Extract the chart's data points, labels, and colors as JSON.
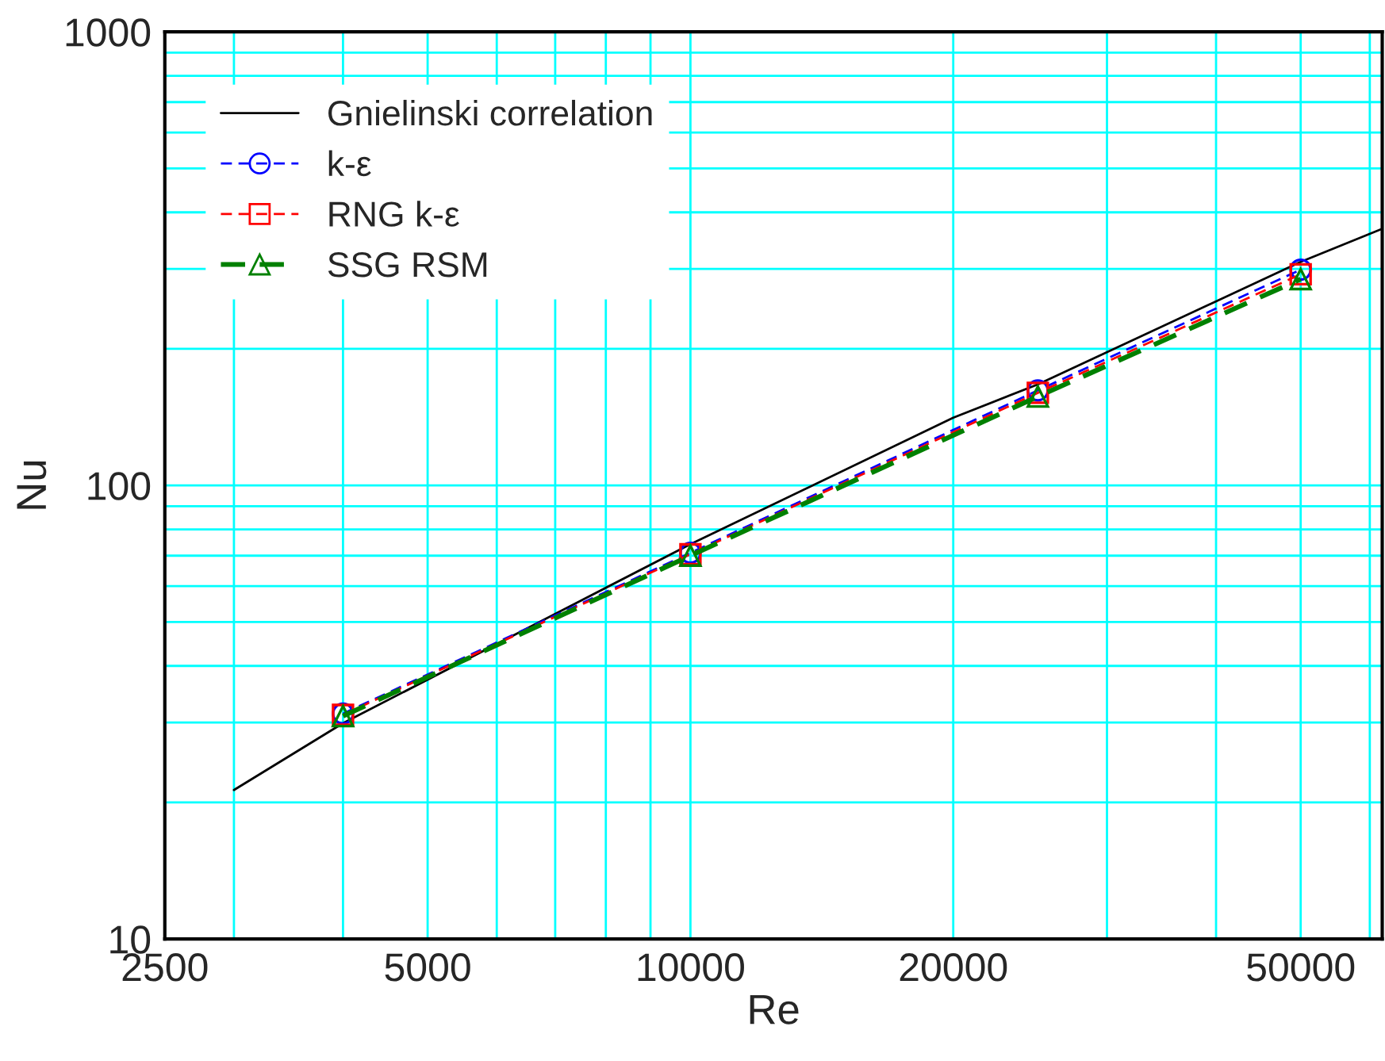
{
  "chart_data": {
    "type": "line",
    "xlabel": "Re",
    "ylabel": "Nu",
    "log": "xy",
    "grid": true,
    "legend": "top left",
    "xlim": [
      2500,
      62000
    ],
    "ylim": [
      10,
      1000
    ],
    "xticks": [
      2500,
      {
        "value": 3000,
        "label": null
      },
      {
        "value": 4000,
        "label": null
      },
      5000,
      {
        "value": 6000,
        "label": null
      },
      {
        "value": 7000,
        "label": null
      },
      {
        "value": 8000,
        "label": null
      },
      {
        "value": 9000,
        "label": null
      },
      10000,
      20000,
      {
        "value": 30000,
        "label": null
      },
      {
        "value": 40000,
        "label": null
      },
      50000,
      {
        "value": 60000,
        "label": null
      }
    ],
    "yticks": [
      10,
      {
        "value": 20,
        "label": null
      },
      {
        "value": 30,
        "label": null
      },
      {
        "value": 40,
        "label": null
      },
      {
        "value": 50,
        "label": null
      },
      {
        "value": 60,
        "label": null
      },
      {
        "value": 70,
        "label": null
      },
      {
        "value": 80,
        "label": null
      },
      {
        "value": 90,
        "label": null
      },
      100,
      {
        "value": 200,
        "label": null
      },
      {
        "value": 300,
        "label": null
      },
      {
        "value": 400,
        "label": null
      },
      {
        "value": 500,
        "label": null
      },
      {
        "value": 600,
        "label": null
      },
      {
        "value": 700,
        "label": null
      },
      {
        "value": 800,
        "label": null
      },
      {
        "value": 900,
        "label": null
      },
      1000
    ],
    "series": [
      {
        "name": "Gnielinski correlation",
        "color": "#000000",
        "x": [
          3000,
          4000,
          10000,
          20000,
          25000,
          50000,
          62000
        ],
        "values": [
          21.3,
          29.9,
          74.2,
          141,
          167,
          311,
          368
        ],
        "marker": "none",
        "line_style": "solid"
      },
      {
        "name": "k-ε",
        "color": "#0000ff",
        "x": [
          4000,
          10000,
          25000,
          50000
        ],
        "values": [
          31.4,
          71,
          162,
          299
        ],
        "marker": "circle",
        "line_style": "dashed"
      },
      {
        "name": "RNG k-ε",
        "color": "#ff0000",
        "x": [
          4000,
          10000,
          25000,
          50000
        ],
        "values": [
          31.2,
          70.5,
          160,
          292
        ],
        "marker": "square",
        "line_style": "dashed"
      },
      {
        "name": "SSG RSM",
        "color": "#008000",
        "x": [
          4000,
          10000,
          25000,
          50000
        ],
        "values": [
          31,
          70,
          157,
          285
        ],
        "marker": "triangle",
        "line_style": "dashed"
      }
    ]
  }
}
